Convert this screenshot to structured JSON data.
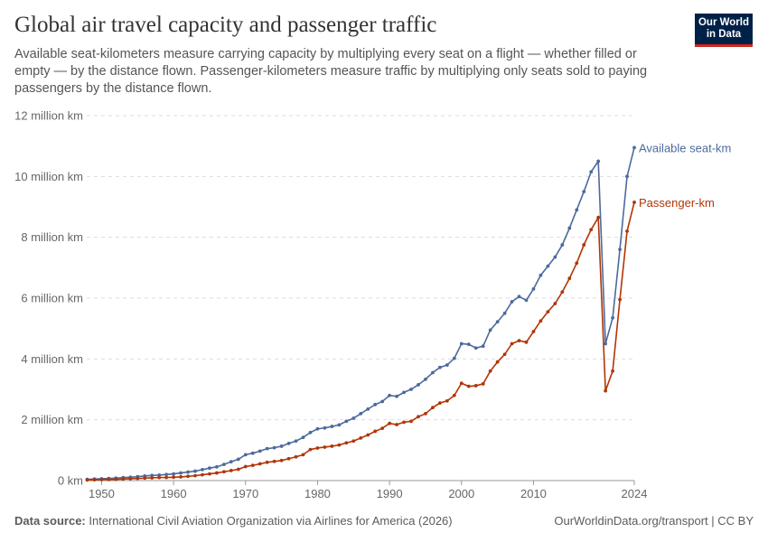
{
  "title": "Global air travel capacity and passenger traffic",
  "subtitle": "Available seat-kilometers measure carrying capacity by multiplying every seat on a flight — whether filled or empty — by the distance flown. Passenger-kilometers measure traffic by multiplying only seats sold to paying passengers by the distance flown.",
  "logo": {
    "line1": "Our World",
    "line2": "in Data"
  },
  "footer": {
    "source_label": "Data source:",
    "source": "International Civil Aviation Organization via Airlines for America (2026)",
    "right": "OurWorldinData.org/transport | CC BY"
  },
  "chart_data": {
    "type": "line",
    "x_start": 1948,
    "x_end": 2024,
    "xticks": [
      1950,
      1960,
      1970,
      1980,
      1990,
      2000,
      2010,
      2024
    ],
    "yticks": [
      0,
      2,
      4,
      6,
      8,
      10,
      12
    ],
    "ytick_labels": [
      "0 km",
      "2 million km",
      "4 million km",
      "6 million km",
      "8 million km",
      "10 million km",
      "12 million km"
    ],
    "ylim": [
      0,
      12
    ],
    "grid": "horizontal dashed",
    "legend": "inline labels at line ends",
    "series": [
      {
        "name": "Available seat-km",
        "color": "#4C6A9C",
        "values": [
          0.04,
          0.05,
          0.06,
          0.07,
          0.08,
          0.1,
          0.11,
          0.13,
          0.15,
          0.17,
          0.18,
          0.2,
          0.22,
          0.25,
          0.28,
          0.31,
          0.36,
          0.41,
          0.45,
          0.53,
          0.62,
          0.7,
          0.85,
          0.9,
          0.97,
          1.05,
          1.08,
          1.13,
          1.22,
          1.3,
          1.42,
          1.58,
          1.7,
          1.73,
          1.78,
          1.83,
          1.95,
          2.05,
          2.2,
          2.35,
          2.5,
          2.6,
          2.8,
          2.77,
          2.9,
          3.0,
          3.15,
          3.33,
          3.55,
          3.72,
          3.8,
          4.02,
          4.5,
          4.48,
          4.36,
          4.42,
          4.95,
          5.22,
          5.5,
          5.88,
          6.05,
          5.93,
          6.3,
          6.75,
          7.05,
          7.35,
          7.75,
          8.3,
          8.9,
          9.5,
          10.15,
          10.5,
          4.5,
          5.35,
          7.6,
          10.0,
          10.95
        ]
      },
      {
        "name": "Passenger-km",
        "color": "#B13507",
        "values": [
          0.02,
          0.025,
          0.03,
          0.035,
          0.04,
          0.05,
          0.06,
          0.07,
          0.08,
          0.09,
          0.1,
          0.1,
          0.11,
          0.12,
          0.14,
          0.16,
          0.19,
          0.22,
          0.25,
          0.29,
          0.33,
          0.37,
          0.46,
          0.5,
          0.55,
          0.6,
          0.63,
          0.66,
          0.72,
          0.78,
          0.85,
          1.02,
          1.07,
          1.1,
          1.13,
          1.17,
          1.24,
          1.3,
          1.4,
          1.5,
          1.62,
          1.72,
          1.88,
          1.84,
          1.92,
          1.95,
          2.1,
          2.2,
          2.4,
          2.55,
          2.62,
          2.8,
          3.2,
          3.1,
          3.12,
          3.18,
          3.6,
          3.9,
          4.15,
          4.5,
          4.6,
          4.55,
          4.9,
          5.25,
          5.55,
          5.82,
          6.2,
          6.65,
          7.15,
          7.75,
          8.25,
          8.65,
          2.95,
          3.6,
          5.95,
          8.2,
          9.15
        ]
      }
    ]
  }
}
